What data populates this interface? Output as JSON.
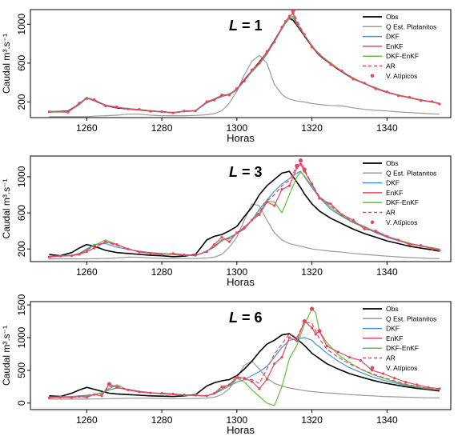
{
  "chart_data": [
    {
      "type": "line",
      "panel_label": "L",
      "panel_value": "1",
      "xlabel": "Horas",
      "ylabel": "Caudal m³.s⁻¹",
      "xlim": [
        1245,
        1357
      ],
      "ylim": [
        40,
        1150
      ],
      "xticks": [
        1260,
        1280,
        1300,
        1320,
        1340
      ],
      "yticks": [
        200,
        600,
        1000
      ],
      "grid": false,
      "legend_placement": "top-right",
      "legend": [
        "Obs",
        "Q Est. Platanitos",
        "DKF",
        "EnKF",
        "DKF-EnKF",
        "AR",
        "V. Atípicos"
      ],
      "x": [
        1250,
        1255,
        1258,
        1260,
        1262,
        1265,
        1268,
        1271,
        1274,
        1277,
        1280,
        1283,
        1286,
        1289,
        1292,
        1294,
        1296,
        1298,
        1300,
        1302,
        1304,
        1306,
        1308,
        1310,
        1312,
        1313,
        1314,
        1315,
        1316,
        1318,
        1320,
        1322,
        1325,
        1328,
        1331,
        1334,
        1337,
        1340,
        1343,
        1346,
        1349,
        1352,
        1354
      ],
      "series": [
        {
          "name": "Obs",
          "values": [
            100,
            105,
            180,
            245,
            215,
            165,
            140,
            130,
            120,
            108,
            100,
            90,
            105,
            110,
            200,
            230,
            265,
            275,
            330,
            430,
            520,
            610,
            710,
            830,
            960,
            1020,
            1060,
            1040,
            990,
            880,
            770,
            680,
            590,
            510,
            440,
            390,
            340,
            300,
            270,
            245,
            220,
            200,
            185
          ]
        },
        {
          "name": "Q Est. Platanitos",
          "values": [
            50,
            50,
            50,
            50,
            55,
            60,
            65,
            75,
            75,
            65,
            60,
            60,
            60,
            62,
            70,
            80,
            110,
            190,
            310,
            480,
            620,
            680,
            600,
            380,
            280,
            250,
            230,
            220,
            210,
            200,
            185,
            175,
            165,
            160,
            140,
            125,
            115,
            108,
            98,
            92,
            85,
            78,
            75
          ]
        },
        {
          "name": "DKF",
          "values": [
            95,
            100,
            170,
            240,
            220,
            170,
            145,
            132,
            122,
            110,
            100,
            92,
            100,
            110,
            190,
            225,
            255,
            280,
            320,
            420,
            510,
            590,
            690,
            820,
            950,
            1010,
            1060,
            1060,
            1010,
            890,
            780,
            690,
            600,
            515,
            445,
            390,
            345,
            305,
            270,
            245,
            220,
            200,
            185
          ]
        },
        {
          "name": "EnKF",
          "values": [
            100,
            95,
            190,
            235,
            225,
            160,
            150,
            128,
            125,
            105,
            102,
            88,
            108,
            108,
            205,
            220,
            275,
            270,
            340,
            415,
            530,
            600,
            720,
            815,
            970,
            1030,
            1080,
            1110,
            1010,
            895,
            765,
            690,
            585,
            520,
            435,
            395,
            335,
            305,
            265,
            250,
            215,
            205,
            180
          ]
        },
        {
          "name": "DKF-EnKF",
          "values": [
            105,
            100,
            175,
            250,
            215,
            170,
            145,
            135,
            120,
            112,
            98,
            95,
            102,
            115,
            195,
            232,
            260,
            285,
            325,
            425,
            515,
            590,
            700,
            825,
            955,
            1015,
            1070,
            1080,
            1000,
            885,
            785,
            680,
            605,
            510,
            450,
            385,
            350,
            300,
            275,
            240,
            225,
            198,
            188
          ]
        },
        {
          "name": "AR",
          "values": [
            100,
            100,
            182,
            242,
            218,
            166,
            142,
            131,
            121,
            109,
            101,
            91,
            104,
            111,
            198,
            228,
            262,
            276,
            328,
            428,
            518,
            600,
            705,
            828,
            962,
            1025,
            1085,
            1130,
            1040,
            890,
            772,
            682,
            592,
            512,
            442,
            392,
            342,
            302,
            272,
            246,
            221,
            201,
            186
          ]
        }
      ],
      "outliers": {
        "name": "V. Atípicos",
        "x": [
          1315
        ],
        "values": [
          1140
        ]
      }
    },
    {
      "type": "line",
      "panel_label": "L",
      "panel_value": "3",
      "xlabel": "Horas",
      "ylabel": "Caudal m³.s⁻¹",
      "xlim": [
        1245,
        1357
      ],
      "ylim": [
        60,
        1230
      ],
      "xticks": [
        1260,
        1280,
        1300,
        1320,
        1340
      ],
      "yticks": [
        200,
        600,
        1000
      ],
      "grid": false,
      "legend_placement": "top-right",
      "legend": [
        "Obs",
        "Q Est. Platanitos",
        "DKF",
        "EnKF",
        "DKF-EnKF",
        "AR",
        "V. Atípicos"
      ],
      "x": [
        1250,
        1253,
        1256,
        1258,
        1260,
        1262,
        1265,
        1268,
        1271,
        1274,
        1277,
        1280,
        1283,
        1286,
        1289,
        1292,
        1294,
        1296,
        1298,
        1300,
        1302,
        1304,
        1306,
        1308,
        1310,
        1312,
        1314,
        1316,
        1317,
        1318,
        1320,
        1322,
        1325,
        1328,
        1331,
        1334,
        1337,
        1340,
        1343,
        1346,
        1349,
        1352,
        1354
      ],
      "series": [
        {
          "name": "Obs",
          "values": [
            140,
            125,
            160,
            210,
            250,
            230,
            185,
            160,
            150,
            140,
            130,
            125,
            115,
            120,
            140,
            300,
            340,
            360,
            400,
            450,
            560,
            660,
            800,
            900,
            970,
            1040,
            1060,
            940,
            880,
            810,
            700,
            620,
            540,
            480,
            420,
            370,
            330,
            290,
            260,
            230,
            210,
            190,
            175
          ]
        },
        {
          "name": "Q Est. Platanitos",
          "values": [
            90,
            90,
            90,
            90,
            90,
            92,
            95,
            100,
            110,
            108,
            100,
            95,
            95,
            95,
            95,
            100,
            110,
            140,
            220,
            330,
            520,
            700,
            680,
            520,
            380,
            300,
            260,
            240,
            230,
            220,
            200,
            190,
            175,
            165,
            150,
            140,
            130,
            120,
            112,
            105,
            100,
            95,
            92
          ]
        },
        {
          "name": "DKF",
          "values": [
            120,
            125,
            130,
            150,
            200,
            250,
            260,
            220,
            195,
            175,
            160,
            150,
            140,
            130,
            125,
            180,
            220,
            290,
            330,
            370,
            420,
            520,
            640,
            740,
            840,
            920,
            980,
            1040,
            1060,
            1000,
            880,
            770,
            640,
            560,
            490,
            440,
            380,
            330,
            290,
            260,
            230,
            210,
            195
          ]
        },
        {
          "name": "EnKF",
          "values": [
            110,
            120,
            125,
            140,
            170,
            210,
            280,
            250,
            200,
            165,
            150,
            140,
            150,
            135,
            130,
            170,
            250,
            330,
            280,
            380,
            440,
            520,
            580,
            720,
            680,
            860,
            900,
            1100,
            1140,
            1060,
            920,
            760,
            700,
            580,
            520,
            420,
            400,
            340,
            300,
            250,
            240,
            200,
            185
          ]
        },
        {
          "name": "DKF-EnKF",
          "values": [
            115,
            120,
            128,
            145,
            190,
            240,
            300,
            250,
            200,
            170,
            155,
            145,
            138,
            132,
            128,
            175,
            230,
            300,
            310,
            375,
            430,
            520,
            600,
            730,
            720,
            600,
            800,
            1000,
            1050,
            1010,
            900,
            780,
            660,
            570,
            500,
            450,
            390,
            340,
            300,
            265,
            235,
            215,
            200
          ]
        },
        {
          "name": "AR",
          "values": [
            118,
            122,
            128,
            145,
            185,
            235,
            275,
            240,
            200,
            172,
            158,
            148,
            140,
            132,
            127,
            172,
            225,
            300,
            320,
            375,
            425,
            520,
            610,
            730,
            800,
            900,
            960,
            1120,
            1180,
            1080,
            920,
            780,
            680,
            580,
            505,
            440,
            390,
            340,
            298,
            258,
            235,
            210,
            192
          ]
        }
      ],
      "outliers": {
        "name": "V. Atípicos",
        "x": [
          1316,
          1317,
          1318
        ],
        "values": [
          1120,
          1180,
          1080
        ]
      }
    },
    {
      "type": "line",
      "panel_label": "L",
      "panel_value": "6",
      "xlabel": "Horas",
      "ylabel": "Caudal m³.s⁻¹",
      "xlim": [
        1245,
        1357
      ],
      "ylim": [
        -100,
        1550
      ],
      "xticks": [
        1260,
        1280,
        1300,
        1320,
        1340
      ],
      "yticks": [
        0,
        500,
        1000,
        1500
      ],
      "grid": false,
      "legend_placement": "top-right",
      "legend": [
        "Obs",
        "Q Est. Platanitos",
        "DKF",
        "EnKF",
        "DKF-EnKF",
        "AR",
        "V. Atípicos"
      ],
      "x": [
        1250,
        1253,
        1256,
        1258,
        1260,
        1262,
        1264,
        1266,
        1268,
        1271,
        1274,
        1277,
        1280,
        1283,
        1286,
        1289,
        1292,
        1294,
        1296,
        1298,
        1300,
        1302,
        1304,
        1306,
        1308,
        1310,
        1312,
        1314,
        1316,
        1318,
        1320,
        1321,
        1322,
        1324,
        1327,
        1330,
        1333,
        1336,
        1339,
        1342,
        1345,
        1348,
        1351,
        1354
      ],
      "series": [
        {
          "name": "Obs",
          "values": [
            110,
            100,
            150,
            200,
            240,
            210,
            180,
            150,
            140,
            130,
            120,
            110,
            105,
            100,
            110,
            130,
            260,
            310,
            340,
            360,
            420,
            520,
            640,
            780,
            900,
            960,
            1040,
            1060,
            980,
            880,
            760,
            720,
            680,
            600,
            520,
            450,
            400,
            350,
            310,
            280,
            250,
            225,
            205,
            185
          ]
        },
        {
          "name": "Q Est. Platanitos",
          "values": [
            60,
            60,
            60,
            60,
            60,
            62,
            65,
            68,
            70,
            72,
            75,
            72,
            70,
            68,
            68,
            70,
            75,
            90,
            130,
            220,
            380,
            580,
            640,
            520,
            380,
            300,
            260,
            230,
            210,
            190,
            175,
            170,
            165,
            155,
            145,
            130,
            120,
            110,
            100,
            95,
            90,
            85,
            80,
            78
          ]
        },
        {
          "name": "DKF",
          "values": [
            90,
            95,
            100,
            110,
            120,
            130,
            160,
            200,
            230,
            210,
            180,
            160,
            140,
            130,
            120,
            115,
            110,
            140,
            200,
            260,
            320,
            360,
            420,
            480,
            560,
            700,
            850,
            960,
            980,
            1000,
            960,
            900,
            860,
            760,
            640,
            540,
            470,
            400,
            350,
            310,
            270,
            240,
            215,
            200
          ]
        },
        {
          "name": "EnKF",
          "values": [
            80,
            90,
            85,
            100,
            90,
            130,
            110,
            290,
            240,
            200,
            170,
            155,
            150,
            140,
            125,
            120,
            110,
            150,
            250,
            280,
            400,
            380,
            330,
            220,
            360,
            600,
            700,
            1000,
            950,
            1250,
            1150,
            1050,
            1100,
            870,
            780,
            700,
            650,
            500,
            450,
            380,
            320,
            280,
            240,
            220
          ]
        },
        {
          "name": "DKF-EnKF",
          "values": [
            90,
            95,
            95,
            105,
            110,
            130,
            150,
            220,
            280,
            200,
            170,
            150,
            145,
            132,
            120,
            115,
            105,
            150,
            220,
            260,
            380,
            320,
            200,
            100,
            0,
            -40,
            250,
            680,
            880,
            1200,
            1440,
            1380,
            1100,
            920,
            740,
            620,
            520,
            440,
            380,
            330,
            280,
            250,
            220,
            200
          ]
        },
        {
          "name": "AR",
          "values": [
            85,
            92,
            92,
            102,
            105,
            130,
            130,
            250,
            260,
            205,
            175,
            155,
            145,
            135,
            122,
            118,
            108,
            148,
            230,
            270,
            390,
            360,
            360,
            300,
            520,
            750,
            900,
            1060,
            1000,
            1240,
            1220,
            1100,
            980,
            820,
            700,
            600,
            520,
            450,
            390,
            340,
            290,
            255,
            225,
            205
          ]
        }
      ],
      "outliers": {
        "name": "V. Atípicos",
        "x": [
          1266,
          1318,
          1320,
          1322
        ],
        "values": [
          290,
          1250,
          1440,
          1100
        ]
      }
    }
  ],
  "colors": {
    "Obs": "#000000",
    "Q Est. Platanitos": "#9a9a9a",
    "DKF": "#3f95dc",
    "EnKF": "#e8465f",
    "DKF-EnKF": "#5cc23d",
    "AR": "#e04868",
    "V. Atípicos": "#e04868"
  }
}
